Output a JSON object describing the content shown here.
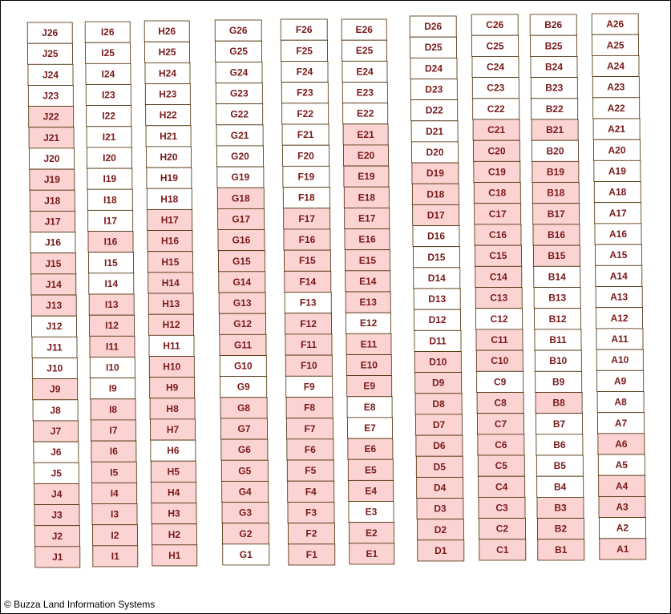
{
  "copyright": "© Buzza Land Information Systems",
  "colors": {
    "sold": "#fbd3d3",
    "available": "#ffffff",
    "border": "#4a2a00",
    "label": "#7a1a1a"
  },
  "rows": [
    {
      "row": "J",
      "plots": [
        {
          "label": "J26",
          "sold": false
        },
        {
          "label": "J25",
          "sold": false
        },
        {
          "label": "J24",
          "sold": false
        },
        {
          "label": "J23",
          "sold": false
        },
        {
          "label": "J22",
          "sold": true
        },
        {
          "label": "J21",
          "sold": true
        },
        {
          "label": "J20",
          "sold": false
        },
        {
          "label": "J19",
          "sold": true
        },
        {
          "label": "J18",
          "sold": true
        },
        {
          "label": "J17",
          "sold": true
        },
        {
          "label": "J16",
          "sold": false
        },
        {
          "label": "J15",
          "sold": true
        },
        {
          "label": "J14",
          "sold": true
        },
        {
          "label": "J13",
          "sold": true
        },
        {
          "label": "J12",
          "sold": false
        },
        {
          "label": "J11",
          "sold": false
        },
        {
          "label": "J10",
          "sold": false
        },
        {
          "label": "J9",
          "sold": true
        },
        {
          "label": "J8",
          "sold": false
        },
        {
          "label": "J7",
          "sold": true
        },
        {
          "label": "J6",
          "sold": false
        },
        {
          "label": "J5",
          "sold": false
        },
        {
          "label": "J4",
          "sold": true
        },
        {
          "label": "J3",
          "sold": true
        },
        {
          "label": "J2",
          "sold": true
        },
        {
          "label": "J1",
          "sold": true
        }
      ]
    },
    {
      "row": "I",
      "plots": [
        {
          "label": "I26",
          "sold": false
        },
        {
          "label": "I25",
          "sold": false
        },
        {
          "label": "I24",
          "sold": false
        },
        {
          "label": "I23",
          "sold": false
        },
        {
          "label": "I22",
          "sold": false
        },
        {
          "label": "I21",
          "sold": false
        },
        {
          "label": "I20",
          "sold": false
        },
        {
          "label": "I19",
          "sold": false
        },
        {
          "label": "I18",
          "sold": false
        },
        {
          "label": "I17",
          "sold": false
        },
        {
          "label": "I16",
          "sold": true
        },
        {
          "label": "I15",
          "sold": false
        },
        {
          "label": "I14",
          "sold": false
        },
        {
          "label": "I13",
          "sold": true
        },
        {
          "label": "I12",
          "sold": true
        },
        {
          "label": "I11",
          "sold": true
        },
        {
          "label": "I10",
          "sold": false
        },
        {
          "label": "I9",
          "sold": false
        },
        {
          "label": "I8",
          "sold": true
        },
        {
          "label": "I7",
          "sold": true
        },
        {
          "label": "I6",
          "sold": true
        },
        {
          "label": "I5",
          "sold": true
        },
        {
          "label": "I4",
          "sold": true
        },
        {
          "label": "I3",
          "sold": true
        },
        {
          "label": "I2",
          "sold": true
        },
        {
          "label": "I1",
          "sold": true
        }
      ]
    },
    {
      "row": "H",
      "plots": [
        {
          "label": "H26",
          "sold": false
        },
        {
          "label": "H25",
          "sold": false
        },
        {
          "label": "H24",
          "sold": false
        },
        {
          "label": "H23",
          "sold": false
        },
        {
          "label": "H22",
          "sold": false
        },
        {
          "label": "H21",
          "sold": false
        },
        {
          "label": "H20",
          "sold": false
        },
        {
          "label": "H19",
          "sold": false
        },
        {
          "label": "H18",
          "sold": false
        },
        {
          "label": "H17",
          "sold": true
        },
        {
          "label": "H16",
          "sold": true
        },
        {
          "label": "H15",
          "sold": true
        },
        {
          "label": "H14",
          "sold": true
        },
        {
          "label": "H13",
          "sold": true
        },
        {
          "label": "H12",
          "sold": true
        },
        {
          "label": "H11",
          "sold": false
        },
        {
          "label": "H10",
          "sold": true
        },
        {
          "label": "H9",
          "sold": true
        },
        {
          "label": "H8",
          "sold": true
        },
        {
          "label": "H7",
          "sold": true
        },
        {
          "label": "H6",
          "sold": false
        },
        {
          "label": "H5",
          "sold": true
        },
        {
          "label": "H4",
          "sold": true
        },
        {
          "label": "H3",
          "sold": true
        },
        {
          "label": "H2",
          "sold": true
        },
        {
          "label": "H1",
          "sold": true
        }
      ]
    },
    {
      "row": "G",
      "plots": [
        {
          "label": "G26",
          "sold": false
        },
        {
          "label": "G25",
          "sold": false
        },
        {
          "label": "G24",
          "sold": false
        },
        {
          "label": "G23",
          "sold": false
        },
        {
          "label": "G22",
          "sold": false
        },
        {
          "label": "G21",
          "sold": false
        },
        {
          "label": "G20",
          "sold": false
        },
        {
          "label": "G19",
          "sold": false
        },
        {
          "label": "G18",
          "sold": true
        },
        {
          "label": "G17",
          "sold": true
        },
        {
          "label": "G16",
          "sold": true
        },
        {
          "label": "G15",
          "sold": true
        },
        {
          "label": "G14",
          "sold": true
        },
        {
          "label": "G13",
          "sold": true
        },
        {
          "label": "G12",
          "sold": true
        },
        {
          "label": "G11",
          "sold": true
        },
        {
          "label": "G10",
          "sold": false
        },
        {
          "label": "G9",
          "sold": false
        },
        {
          "label": "G8",
          "sold": true
        },
        {
          "label": "G7",
          "sold": true
        },
        {
          "label": "G6",
          "sold": true
        },
        {
          "label": "G5",
          "sold": true
        },
        {
          "label": "G4",
          "sold": true
        },
        {
          "label": "G3",
          "sold": true
        },
        {
          "label": "G2",
          "sold": true
        },
        {
          "label": "G1",
          "sold": false
        }
      ]
    },
    {
      "row": "F",
      "plots": [
        {
          "label": "F26",
          "sold": false
        },
        {
          "label": "F25",
          "sold": false
        },
        {
          "label": "F24",
          "sold": false
        },
        {
          "label": "F23",
          "sold": false
        },
        {
          "label": "F22",
          "sold": false
        },
        {
          "label": "F21",
          "sold": false
        },
        {
          "label": "F20",
          "sold": false
        },
        {
          "label": "F19",
          "sold": false
        },
        {
          "label": "F18",
          "sold": false
        },
        {
          "label": "F17",
          "sold": true
        },
        {
          "label": "F16",
          "sold": true
        },
        {
          "label": "F15",
          "sold": true
        },
        {
          "label": "F14",
          "sold": true
        },
        {
          "label": "F13",
          "sold": false
        },
        {
          "label": "F12",
          "sold": true
        },
        {
          "label": "F11",
          "sold": true
        },
        {
          "label": "F10",
          "sold": true
        },
        {
          "label": "F9",
          "sold": false
        },
        {
          "label": "F8",
          "sold": true
        },
        {
          "label": "F7",
          "sold": true
        },
        {
          "label": "F6",
          "sold": true
        },
        {
          "label": "F5",
          "sold": true
        },
        {
          "label": "F4",
          "sold": true
        },
        {
          "label": "F3",
          "sold": true
        },
        {
          "label": "F2",
          "sold": true
        },
        {
          "label": "F1",
          "sold": true
        }
      ]
    },
    {
      "row": "E",
      "plots": [
        {
          "label": "E26",
          "sold": false
        },
        {
          "label": "E25",
          "sold": false
        },
        {
          "label": "E24",
          "sold": false
        },
        {
          "label": "E23",
          "sold": false
        },
        {
          "label": "E22",
          "sold": false
        },
        {
          "label": "E21",
          "sold": true
        },
        {
          "label": "E20",
          "sold": true
        },
        {
          "label": "E19",
          "sold": true
        },
        {
          "label": "E18",
          "sold": true
        },
        {
          "label": "E17",
          "sold": true
        },
        {
          "label": "E16",
          "sold": true
        },
        {
          "label": "E15",
          "sold": true
        },
        {
          "label": "E14",
          "sold": true
        },
        {
          "label": "E13",
          "sold": true
        },
        {
          "label": "E12",
          "sold": false
        },
        {
          "label": "E11",
          "sold": true
        },
        {
          "label": "E10",
          "sold": true
        },
        {
          "label": "E9",
          "sold": true
        },
        {
          "label": "E8",
          "sold": false
        },
        {
          "label": "E7",
          "sold": false
        },
        {
          "label": "E6",
          "sold": true
        },
        {
          "label": "E5",
          "sold": true
        },
        {
          "label": "E4",
          "sold": true
        },
        {
          "label": "E3",
          "sold": false
        },
        {
          "label": "E2",
          "sold": true
        },
        {
          "label": "E1",
          "sold": true
        }
      ]
    },
    {
      "row": "D",
      "plots": [
        {
          "label": "D26",
          "sold": false
        },
        {
          "label": "D25",
          "sold": false
        },
        {
          "label": "D24",
          "sold": false
        },
        {
          "label": "D23",
          "sold": false
        },
        {
          "label": "D22",
          "sold": false
        },
        {
          "label": "D21",
          "sold": false
        },
        {
          "label": "D20",
          "sold": false
        },
        {
          "label": "D19",
          "sold": true
        },
        {
          "label": "D18",
          "sold": true
        },
        {
          "label": "D17",
          "sold": true
        },
        {
          "label": "D16",
          "sold": false
        },
        {
          "label": "D15",
          "sold": false
        },
        {
          "label": "D14",
          "sold": false
        },
        {
          "label": "D13",
          "sold": false
        },
        {
          "label": "D12",
          "sold": false
        },
        {
          "label": "D11",
          "sold": false
        },
        {
          "label": "D10",
          "sold": true
        },
        {
          "label": "D9",
          "sold": true
        },
        {
          "label": "D8",
          "sold": true
        },
        {
          "label": "D7",
          "sold": true
        },
        {
          "label": "D6",
          "sold": true
        },
        {
          "label": "D5",
          "sold": true
        },
        {
          "label": "D4",
          "sold": true
        },
        {
          "label": "D3",
          "sold": true
        },
        {
          "label": "D2",
          "sold": true
        },
        {
          "label": "D1",
          "sold": true
        }
      ]
    },
    {
      "row": "C",
      "plots": [
        {
          "label": "C26",
          "sold": false
        },
        {
          "label": "C25",
          "sold": false
        },
        {
          "label": "C24",
          "sold": false
        },
        {
          "label": "C23",
          "sold": false
        },
        {
          "label": "C22",
          "sold": false
        },
        {
          "label": "C21",
          "sold": true
        },
        {
          "label": "C20",
          "sold": true
        },
        {
          "label": "C19",
          "sold": true
        },
        {
          "label": "C18",
          "sold": true
        },
        {
          "label": "C17",
          "sold": true
        },
        {
          "label": "C16",
          "sold": true
        },
        {
          "label": "C15",
          "sold": true
        },
        {
          "label": "C14",
          "sold": true
        },
        {
          "label": "C13",
          "sold": true
        },
        {
          "label": "C12",
          "sold": false
        },
        {
          "label": "C11",
          "sold": true
        },
        {
          "label": "C10",
          "sold": true
        },
        {
          "label": "C9",
          "sold": false
        },
        {
          "label": "C8",
          "sold": true
        },
        {
          "label": "C7",
          "sold": true
        },
        {
          "label": "C6",
          "sold": true
        },
        {
          "label": "C5",
          "sold": true
        },
        {
          "label": "C4",
          "sold": true
        },
        {
          "label": "C3",
          "sold": true
        },
        {
          "label": "C2",
          "sold": true
        },
        {
          "label": "C1",
          "sold": true
        }
      ]
    },
    {
      "row": "B",
      "plots": [
        {
          "label": "B26",
          "sold": false
        },
        {
          "label": "B25",
          "sold": false
        },
        {
          "label": "B24",
          "sold": false
        },
        {
          "label": "B23",
          "sold": false
        },
        {
          "label": "B22",
          "sold": false
        },
        {
          "label": "B21",
          "sold": true
        },
        {
          "label": "B20",
          "sold": false
        },
        {
          "label": "B19",
          "sold": true
        },
        {
          "label": "B18",
          "sold": true
        },
        {
          "label": "B17",
          "sold": true
        },
        {
          "label": "B16",
          "sold": true
        },
        {
          "label": "B15",
          "sold": true
        },
        {
          "label": "B14",
          "sold": false
        },
        {
          "label": "B13",
          "sold": false
        },
        {
          "label": "B12",
          "sold": false
        },
        {
          "label": "B11",
          "sold": false
        },
        {
          "label": "B10",
          "sold": false
        },
        {
          "label": "B9",
          "sold": false
        },
        {
          "label": "B8",
          "sold": true
        },
        {
          "label": "B7",
          "sold": false
        },
        {
          "label": "B6",
          "sold": false
        },
        {
          "label": "B5",
          "sold": false
        },
        {
          "label": "B4",
          "sold": false
        },
        {
          "label": "B3",
          "sold": true
        },
        {
          "label": "B2",
          "sold": true
        },
        {
          "label": "B1",
          "sold": true
        }
      ]
    },
    {
      "row": "A",
      "plots": [
        {
          "label": "A26",
          "sold": false
        },
        {
          "label": "A25",
          "sold": false
        },
        {
          "label": "A24",
          "sold": false
        },
        {
          "label": "A23",
          "sold": false
        },
        {
          "label": "A22",
          "sold": false
        },
        {
          "label": "A21",
          "sold": false
        },
        {
          "label": "A20",
          "sold": false
        },
        {
          "label": "A19",
          "sold": false
        },
        {
          "label": "A18",
          "sold": false
        },
        {
          "label": "A17",
          "sold": false
        },
        {
          "label": "A16",
          "sold": false
        },
        {
          "label": "A15",
          "sold": false
        },
        {
          "label": "A14",
          "sold": false
        },
        {
          "label": "A13",
          "sold": false
        },
        {
          "label": "A12",
          "sold": false
        },
        {
          "label": "A11",
          "sold": false
        },
        {
          "label": "A10",
          "sold": false
        },
        {
          "label": "A9",
          "sold": false
        },
        {
          "label": "A8",
          "sold": false
        },
        {
          "label": "A7",
          "sold": false
        },
        {
          "label": "A6",
          "sold": true
        },
        {
          "label": "A5",
          "sold": false
        },
        {
          "label": "A4",
          "sold": true
        },
        {
          "label": "A3",
          "sold": true
        },
        {
          "label": "A2",
          "sold": false
        },
        {
          "label": "A1",
          "sold": true
        }
      ]
    }
  ]
}
